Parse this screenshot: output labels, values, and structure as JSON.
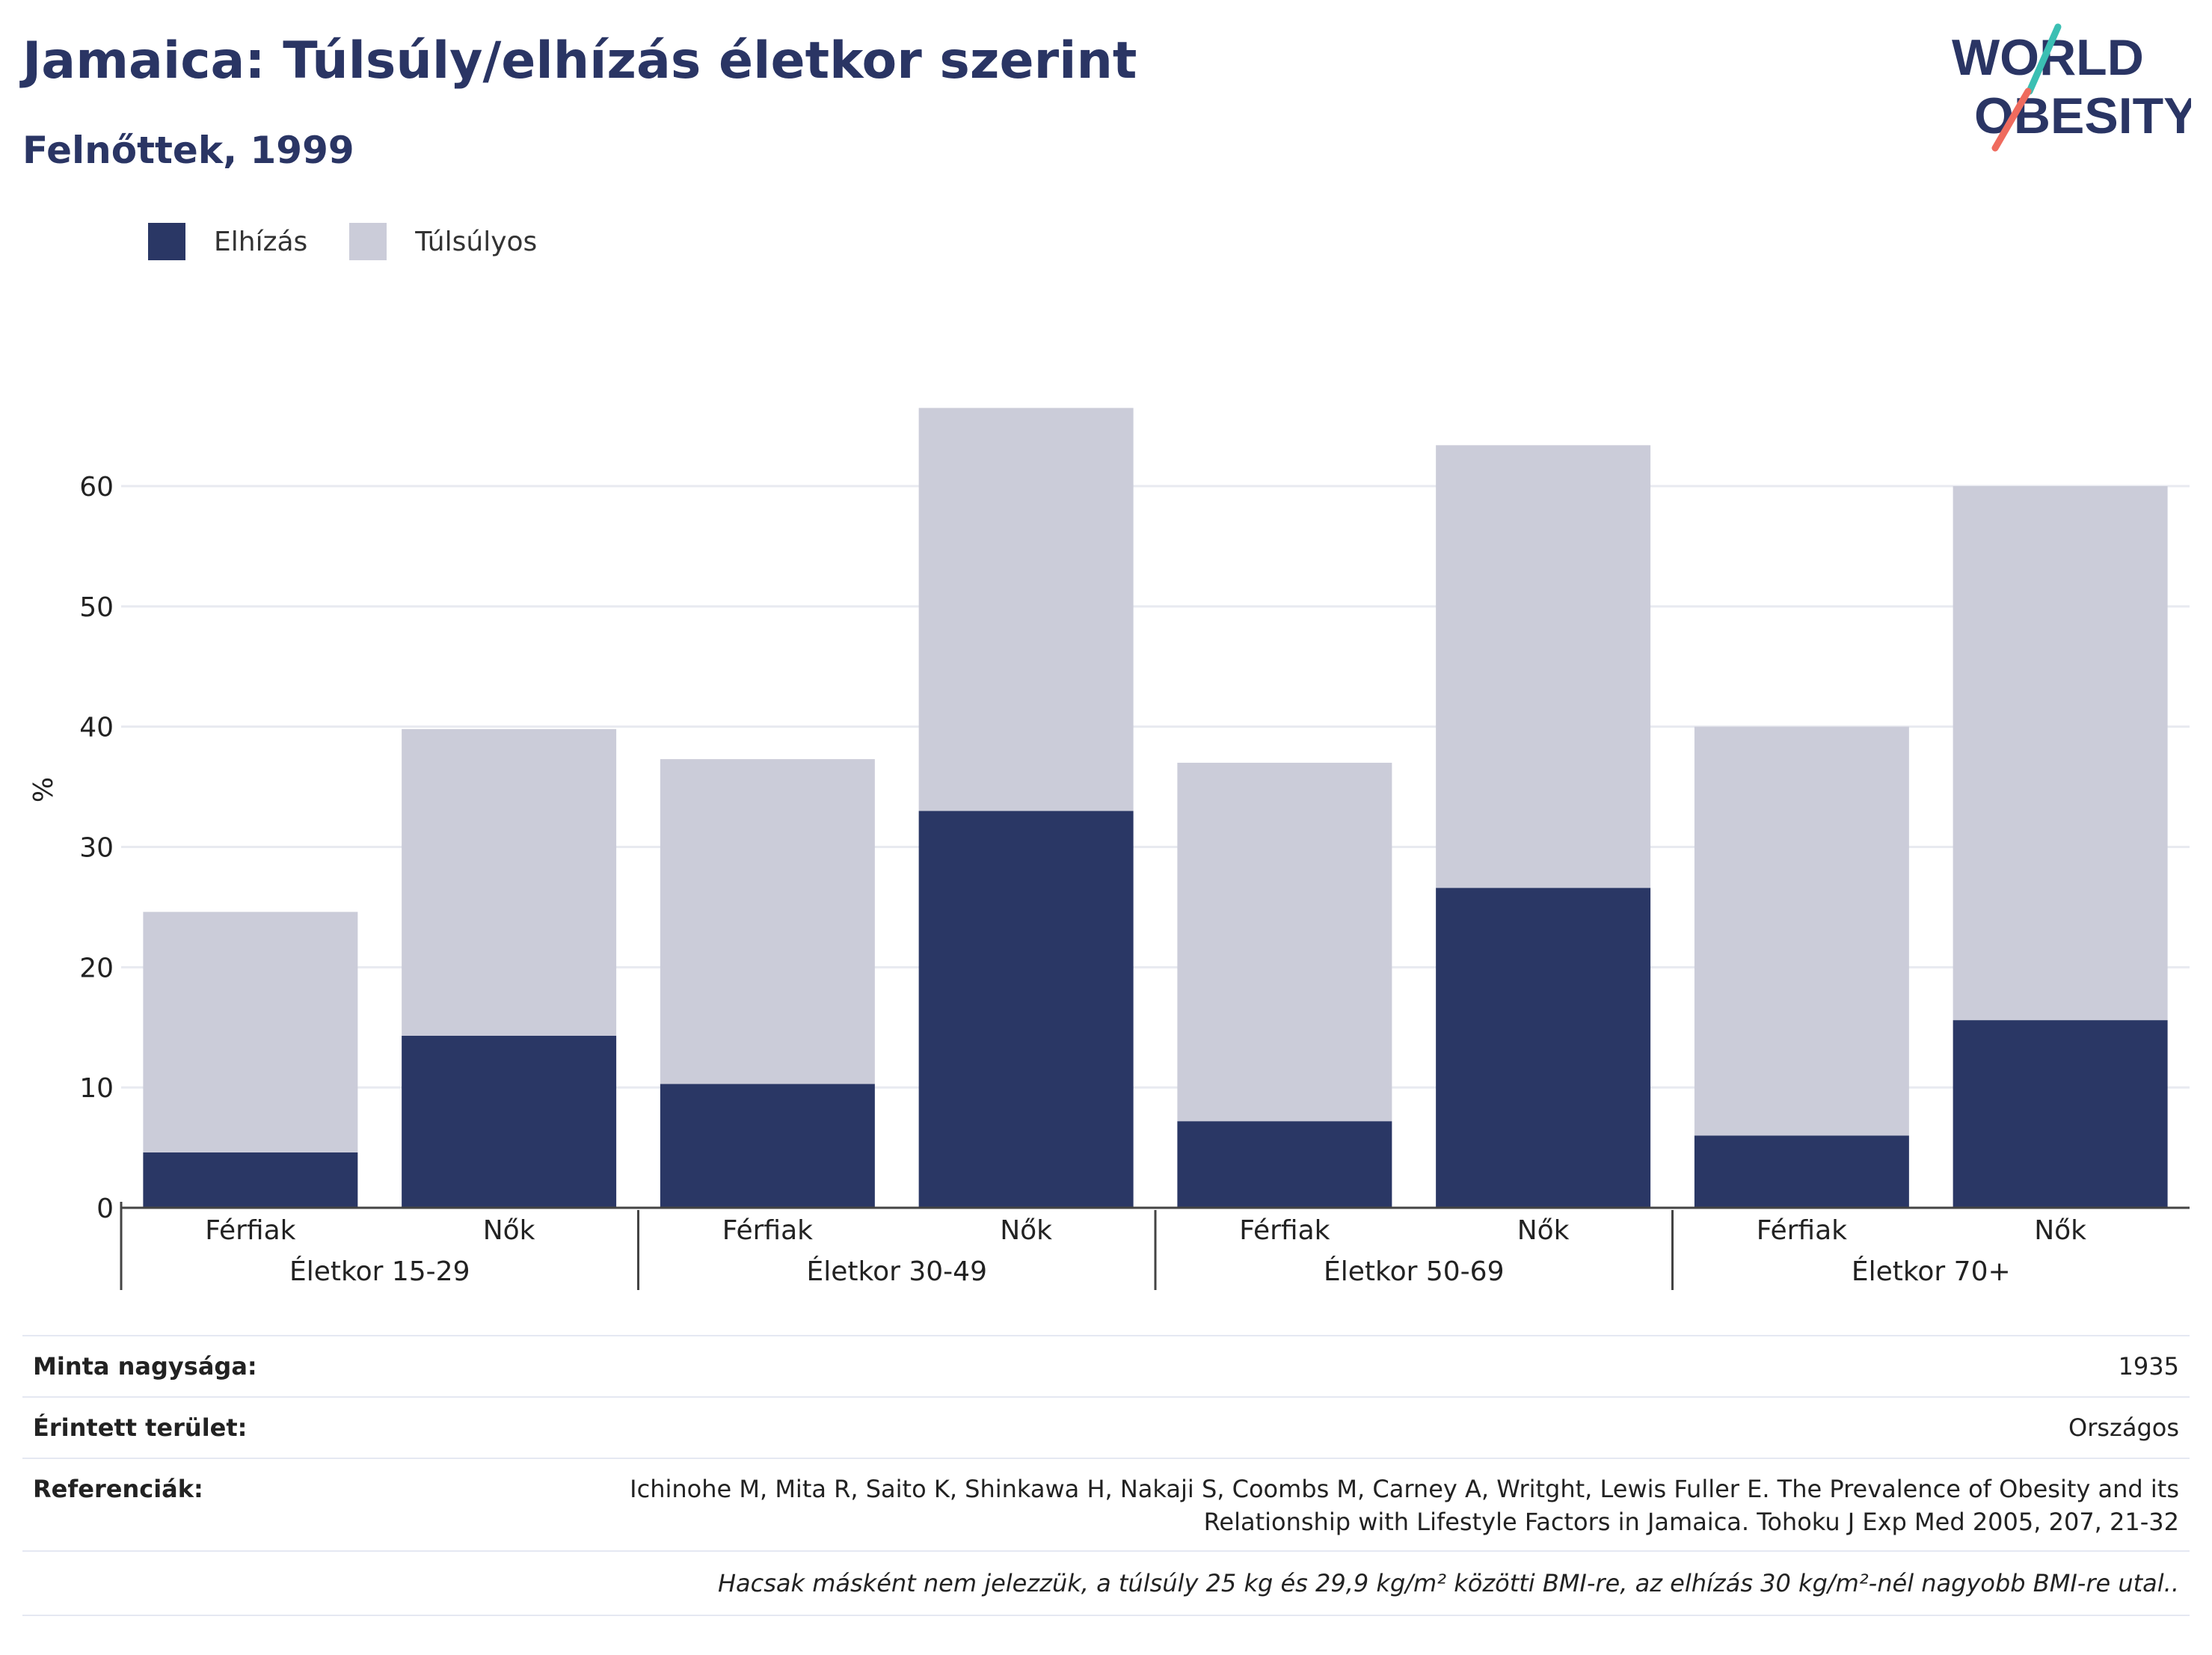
{
  "title": "Jamaica: Túlsúly/elhízás életkor szerint",
  "subtitle": "Felnőttek, 1999",
  "logo": {
    "line1": "WORLD",
    "line2": "OBESITY"
  },
  "legend": [
    {
      "label": "Elhízás",
      "color": "#2a3765"
    },
    {
      "label": "Túlsúlyos",
      "color": "#cbccd9"
    }
  ],
  "chart_data": {
    "type": "bar",
    "stacked": true,
    "ylabel": "%",
    "ylim": [
      0,
      70
    ],
    "yticks": [
      0,
      10,
      20,
      30,
      40,
      50,
      60
    ],
    "grid": true,
    "legend_position": "top-left",
    "groups": [
      "Életkor 15-29",
      "Életkor 30-49",
      "Életkor 50-69",
      "Életkor 70+"
    ],
    "categories": [
      "Férfiak",
      "Nők",
      "Férfiak",
      "Nők",
      "Férfiak",
      "Nők",
      "Férfiak",
      "Nők"
    ],
    "series": [
      {
        "name": "Elhízás",
        "color": "#2a3765",
        "values": [
          4.6,
          14.3,
          10.3,
          33.0,
          7.2,
          26.6,
          6.0,
          15.6
        ]
      },
      {
        "name": "Túlsúlyos",
        "color": "#cbccd9",
        "values": [
          20.0,
          25.5,
          27.0,
          33.5,
          29.8,
          36.8,
          34.0,
          44.4
        ]
      }
    ]
  },
  "meta": {
    "sample_label": "Minta nagysága:",
    "sample_value": "1935",
    "area_label": "Érintett terület:",
    "area_value": "Országos",
    "ref_label": "Referenciák:",
    "ref_line1": "Ichinohe M, Mita R, Saito K, Shinkawa H, Nakaji S, Coombs M, Carney A, Writght, Lewis Fuller E. The Prevalence of Obesity and its",
    "ref_line2": "Relationship with Lifestyle Factors in Jamaica. Tohoku J Exp Med 2005, 207, 21-32",
    "note": "Hacsak másként nem jelezzük, a túlsúly 25 kg és 29,9 kg/m² közötti BMI-re, az elhízás 30 kg/m²-nél nagyobb BMI-re utal.."
  }
}
